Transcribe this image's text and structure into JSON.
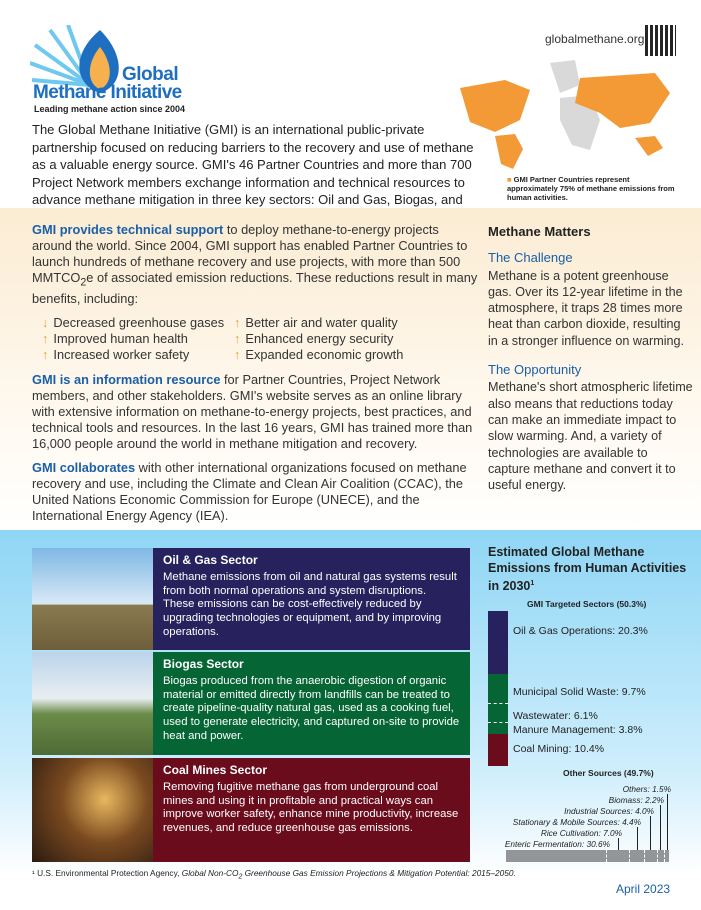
{
  "header": {
    "logo_line1": "Global",
    "logo_line2": "Methane Initiative",
    "tagline": "Leading methane action since 2004",
    "website": "globalmethane.org"
  },
  "intro": "The Global Methane Initiative (GMI) is an international public-private partnership focused on reducing barriers to the recovery and use of methane as a valuable energy source. GMI's 46 Partner Countries and more than 700 Project Network members exchange information and technical resources to advance methane mitigation in three key sectors: Oil and Gas, Biogas, and Coal Mines.",
  "map_note": "GMI Partner Countries represent approximately 75% of methane emissions from human activities.",
  "support": {
    "lead": "GMI provides technical support",
    "text": " to deploy methane-to-energy projects around the world. Since 2004, GMI support has enabled Partner Countries to launch hundreds of methane recovery and use projects, with more than 500 MMTCO",
    "sub": "2",
    "text2": "e of associated emission reductions. These reductions result in many benefits, including:"
  },
  "benefits": [
    {
      "arrow": "↓",
      "text": "Decreased greenhouse gases"
    },
    {
      "arrow": "↑",
      "text": "Better air and water quality"
    },
    {
      "arrow": "↑",
      "text": "Improved human health"
    },
    {
      "arrow": "↑",
      "text": "Enhanced energy security"
    },
    {
      "arrow": "↑",
      "text": "Increased worker safety"
    },
    {
      "arrow": "↑",
      "text": "Expanded economic growth"
    }
  ],
  "info": {
    "lead": "GMI is an information resource",
    "text": " for Partner Countries, Project Network members, and other stakeholders. GMI's website serves as an online library with extensive information on methane-to-energy projects, best practices, and technical tools and resources. In the last 16 years, GMI has trained more than 16,000 people around the world in methane mitigation and recovery."
  },
  "collab": {
    "lead": "GMI collaborates",
    "text": " with other international organizations focused on methane recovery and use, including the Climate and Clean Air Coalition (CCAC), the United Nations Economic Commission for Europe (UNECE), and the International Energy Agency (IEA)."
  },
  "methane_matters": {
    "title": "Methane Matters",
    "challenge_title": "The Challenge",
    "challenge": "Methane is a potent greenhouse gas. Over its 12-year lifetime in the atmosphere, it traps 28 times more heat than carbon dioxide, resulting in a stronger influence on warming.",
    "opportunity_title": "The Opportunity",
    "opportunity": "Methane's short atmospheric lifetime also means that reductions today can make an immediate impact to slow warming. And, a variety of technologies are available to capture methane and convert it to useful energy."
  },
  "sectors": [
    {
      "title": "Oil & Gas Sector",
      "text": "Methane emissions from oil and natural gas systems result from both normal operations and system disruptions. These emissions can be cost-effectively reduced by upgrading technologies or equipment, and by improving operations.",
      "color": "#27215e"
    },
    {
      "title": "Biogas Sector",
      "text": "Biogas produced from the anaerobic digestion of organic material or emitted directly from landfills can be treated to create pipeline-quality natural gas, used as a cooking fuel, used to generate electricity, and captured on-site to provide heat and power.",
      "color": "#066534"
    },
    {
      "title": "Coal Mines Sector",
      "text": "Removing fugitive methane gas from underground coal mines and using it in profitable and practical ways can improve worker safety, enhance mine productivity, increase revenues, and reduce greenhouse gas emissions.",
      "color": "#6a0c1c"
    }
  ],
  "chart_data": {
    "type": "bar",
    "title": "Estimated Global Methane Emissions from Human Activities in 2030",
    "title_sup": "1",
    "groups": [
      {
        "name": "GMI Targeted Sectors (50.3%)",
        "categories": [
          "Oil & Gas Operations",
          "Municipal Solid Waste",
          "Wastewater",
          "Manure Management",
          "Coal Mining"
        ],
        "values": [
          20.3,
          9.7,
          6.1,
          3.8,
          10.4
        ],
        "labels": [
          "Oil & Gas Operations: 20.3%",
          "Municipal Solid Waste: 9.7%",
          "Wastewater: 6.1%",
          "Manure Management: 3.8%",
          "Coal Mining: 10.4%"
        ],
        "colors": [
          "#27215e",
          "#066534",
          "#066534",
          "#066534",
          "#6a0c1c"
        ]
      },
      {
        "name": "Other Sources (49.7%)",
        "categories": [
          "Enteric Fermentation",
          "Rice Cultivation",
          "Stationary & Mobile Sources",
          "Industrial Sources",
          "Biomass",
          "Others"
        ],
        "values": [
          30.6,
          7.0,
          4.4,
          4.0,
          2.2,
          1.5
        ],
        "labels": [
          "Enteric Fermentation: 30.6%",
          "Rice Cultivation: 7.0%",
          "Stationary & Mobile Sources: 4.4%",
          "Industrial Sources: 4.0%",
          "Biomass: 2.2%",
          "Others: 1.5%"
        ],
        "color": "#939598"
      }
    ]
  },
  "footnote": {
    "pre": "¹ U.S. Environmental Protection Agency, ",
    "italic": "Global Non-CO",
    "sub": "2",
    "italic2": " Greenhouse Gas Emission Projections & Mitigation Potential: 2015–2050."
  },
  "date": "April 2023"
}
